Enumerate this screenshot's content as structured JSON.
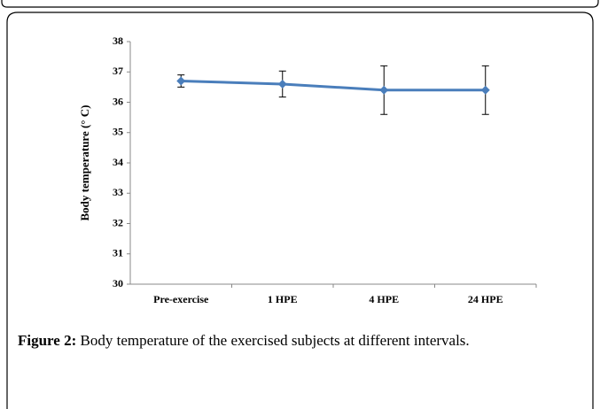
{
  "chart_data": {
    "type": "line",
    "ylabel": "Body temperature (° C)",
    "categories": [
      "Pre-exercise",
      "1 HPE",
      "4 HPE",
      "24 HPE"
    ],
    "series": [
      {
        "name": "Body temperature",
        "color": "#4a7ebb",
        "values": [
          36.7,
          36.6,
          36.4,
          36.4
        ],
        "errors": [
          0.2,
          0.43,
          0.8,
          0.8
        ]
      }
    ],
    "ylim": [
      30,
      38
    ],
    "yticks": [
      30,
      31,
      32,
      33,
      34,
      35,
      36,
      37,
      38
    ],
    "grid": false
  },
  "caption": {
    "label": "Figure 2:",
    "text": "Body temperature of the exercised subjects at different intervals."
  }
}
